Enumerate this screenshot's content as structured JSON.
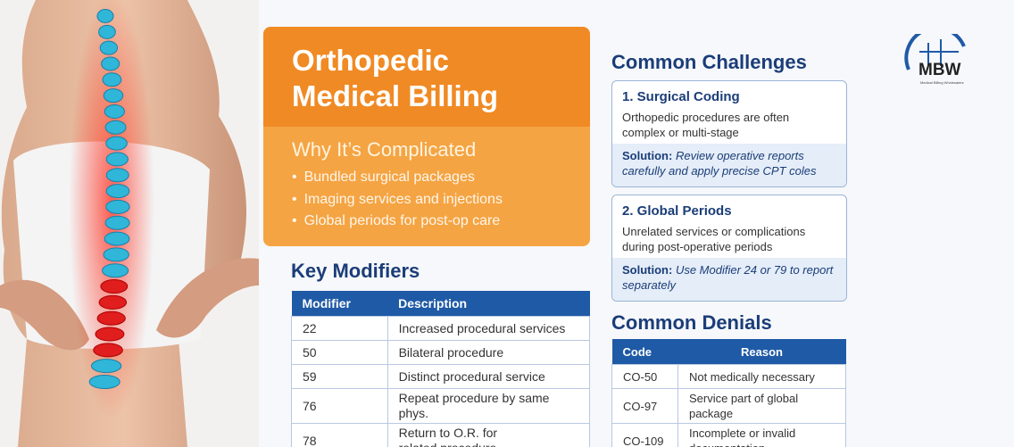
{
  "header": {
    "title_line1": "Orthopedic",
    "title_line2": "Medical Billing",
    "subtitle": "Why It’s Complicated",
    "bullets": [
      "Bundled surgical packages",
      "Imaging services and injections",
      "Global periods for post-op care"
    ]
  },
  "key_modifiers": {
    "title": "Key Modifiers",
    "columns": [
      "Modifier",
      "Description"
    ],
    "rows": [
      [
        "22",
        "Increased procedural services"
      ],
      [
        "50",
        "Bilateral procedure"
      ],
      [
        "59",
        "Distinct procedural service"
      ],
      [
        "76",
        "Repeat procedure by same phys."
      ],
      [
        "78",
        "Return to O.R. for related procedure"
      ]
    ]
  },
  "challenges": {
    "title": "Common Challenges",
    "items": [
      {
        "heading": "1. Surgical Coding",
        "text": "Orthopedic procedures are often complex or multi-stage",
        "solution_label": "Solution:",
        "solution": "Review operative reports carefully and apply precise CPT coles"
      },
      {
        "heading": "2. Global Periods",
        "text": "Unrelated services or complications during post-operative periods",
        "solution_label": "Solution:",
        "solution": "Use Modifier 24 or 79 to report separately"
      }
    ]
  },
  "denials": {
    "title": "Common Denials",
    "columns": [
      "Code",
      "Reason"
    ],
    "rows": [
      [
        "CO-50",
        "Not medically necessary"
      ],
      [
        "CO-97",
        "Service part of global package"
      ],
      [
        "CO-109",
        "Incomplete or invalid documentation"
      ]
    ]
  },
  "logo": {
    "text": "MBW",
    "tagline": "Medical Billing Wholesalers"
  }
}
